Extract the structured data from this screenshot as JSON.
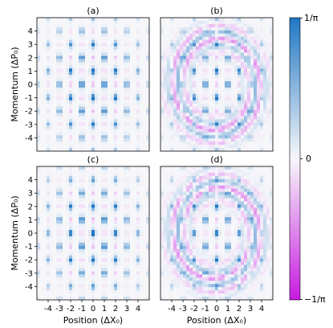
{
  "chart_data": {
    "type": "heatmap",
    "title": "",
    "xlabel": "Position (ΔX₀)",
    "ylabel": "Momentum (ΔP₀)",
    "xlim": [
      -5,
      5
    ],
    "ylim": [
      -5,
      5
    ],
    "xticks": [
      -4,
      -3,
      -2,
      -1,
      0,
      1,
      2,
      3,
      4
    ],
    "yticks": [
      -4,
      -3,
      -2,
      -1,
      0,
      1,
      2,
      3,
      4
    ],
    "colorbar": {
      "ticks": [
        {
          "value": 1,
          "label": "1/π"
        },
        {
          "value": 0,
          "label": "0"
        },
        {
          "value": -1,
          "label": "−1/π"
        }
      ],
      "colors": {
        "positive": "#1f77c4",
        "zero": "#f7f7fa",
        "negative": "#c81be0"
      }
    },
    "grid": false,
    "panels": [
      {
        "label": "(a)",
        "kind": "ideal",
        "phase": 0,
        "fringes": false
      },
      {
        "label": "(b)",
        "kind": "reconstructed",
        "phase": 0,
        "fringes": true
      },
      {
        "label": "(c)",
        "kind": "ideal",
        "phase": 1,
        "fringes": false
      },
      {
        "label": "(d)",
        "kind": "reconstructed",
        "phase": 1,
        "fringes": true
      }
    ]
  }
}
